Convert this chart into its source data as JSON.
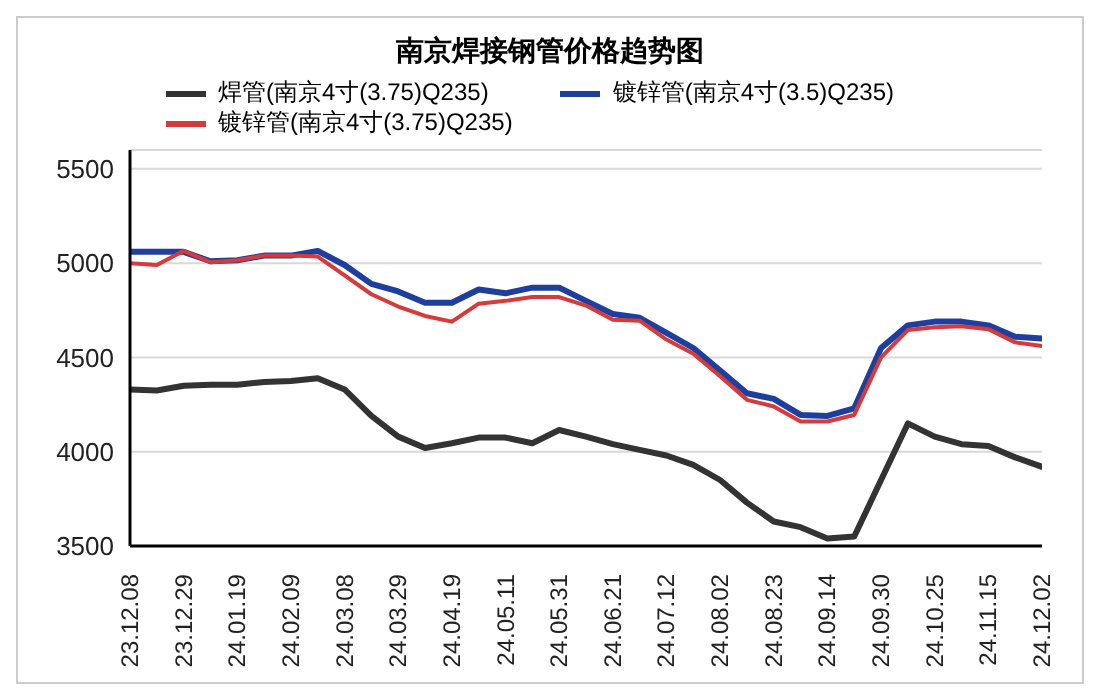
{
  "chart_data": {
    "type": "line",
    "title": "南京焊接钢管价格趋势图",
    "categories": [
      "23.12.08",
      null,
      "23.12.29",
      null,
      "24.01.19",
      null,
      "24.02.09",
      null,
      "24.03.08",
      null,
      "24.03.29",
      null,
      "24.04.19",
      null,
      "24.05.11",
      null,
      "24.05.31",
      null,
      "24.06.21",
      null,
      "24.07.12",
      null,
      "24.08.02",
      null,
      "24.08.23",
      null,
      "24.09.14",
      null,
      "24.09.30",
      null,
      "24.10.25",
      null,
      "24.11.15",
      null,
      "24.12.02"
    ],
    "series": [
      {
        "name": "焊管(南京4寸(3.75)Q235)",
        "color": "#333333",
        "values": [
          4330,
          4325,
          4350,
          4355,
          4355,
          4370,
          4375,
          4390,
          4330,
          4190,
          4080,
          4020,
          4045,
          4075,
          4075,
          4045,
          4115,
          4080,
          4040,
          4010,
          3980,
          3930,
          3850,
          3730,
          3630,
          3600,
          3540,
          3550,
          3850,
          4150,
          4080,
          4040,
          4030,
          3970,
          3920
        ]
      },
      {
        "name": "镀锌管(南京4寸(3.5)Q235)",
        "color": "#1f3f9f",
        "values": [
          5060,
          5060,
          5060,
          5010,
          5015,
          5040,
          5040,
          5065,
          4990,
          4890,
          4850,
          4790,
          4790,
          4860,
          4840,
          4870,
          4870,
          4800,
          4730,
          4710,
          4630,
          4550,
          4430,
          4310,
          4280,
          4195,
          4190,
          4230,
          4550,
          4670,
          4690,
          4690,
          4670,
          4610,
          4600
        ]
      },
      {
        "name": "镀锌管(南京4寸(3.75)Q235)",
        "color": "#d63a3a",
        "values": [
          5000,
          4990,
          5065,
          5005,
          5015,
          5040,
          5040,
          5035,
          4935,
          4835,
          4770,
          4720,
          4690,
          4785,
          4800,
          4820,
          4820,
          4775,
          4700,
          4695,
          4595,
          4520,
          4400,
          4275,
          4240,
          4160,
          4160,
          4195,
          4500,
          4645,
          4660,
          4665,
          4650,
          4580,
          4560
        ]
      }
    ],
    "ylim": [
      3500,
      5600
    ],
    "yticks": [
      3500,
      4000,
      4500,
      5000,
      5500
    ],
    "grid": "y",
    "legend": "top",
    "marker": "none",
    "line_style": "solid"
  }
}
